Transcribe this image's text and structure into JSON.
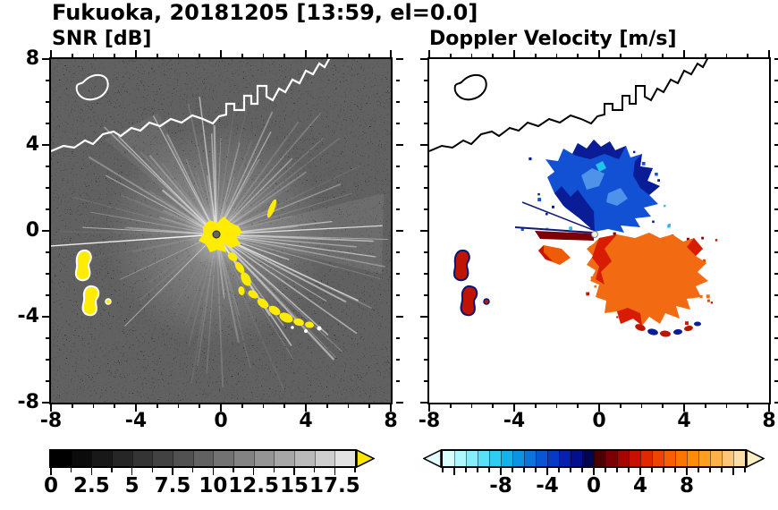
{
  "header": {
    "title": "Fukuoka, 20181205 [13:59, el=0.0]"
  },
  "panels": {
    "snr": {
      "label": "SNR [dB]",
      "xticks": [
        "-8",
        "-4",
        "0",
        "4",
        "8"
      ],
      "yticks": [
        "8",
        "4",
        "0",
        "-4",
        "-8"
      ]
    },
    "doppler": {
      "label": "Doppler Velocity [m/s]",
      "xticks": [
        "-8",
        "-4",
        "0",
        "4",
        "8"
      ]
    }
  },
  "colorbars": {
    "snr": {
      "range": [
        0,
        18.75
      ],
      "minor_step": 1.25,
      "major_tick_values": [
        0,
        2.5,
        5,
        7.5,
        10,
        12.5,
        15,
        17.5
      ],
      "label_values": [
        0,
        2.5,
        5,
        7.5,
        10,
        12.5,
        15,
        17.5
      ],
      "tick_labels": [
        "0",
        "2.5",
        "5",
        "7.5",
        "10",
        "12.5",
        "15",
        "17.5"
      ],
      "segment_colors": [
        "#000000",
        "#0b0b0b",
        "#181818",
        "#262626",
        "#343434",
        "#424242",
        "#515151",
        "#616161",
        "#727272",
        "#838383",
        "#959595",
        "#a7a7a7",
        "#bababa",
        "#cecece",
        "#e2e2e2"
      ],
      "over_arrow_color": "#ffe600",
      "frame_color": "#000000"
    },
    "doppler": {
      "range": [
        -13,
        13
      ],
      "minor_step": 1,
      "major_tick_values": [
        -12,
        -8,
        -4,
        0,
        4,
        8,
        12
      ],
      "label_values": [
        -8,
        -4,
        0,
        4,
        8
      ],
      "tick_labels": [
        "-8",
        "-4",
        "0",
        "4",
        "8"
      ],
      "segment_colors": [
        "#d8feff",
        "#b0f8ff",
        "#84f0fc",
        "#57e2f8",
        "#30cdf2",
        "#14b2ea",
        "#0e93e2",
        "#0b74da",
        "#0956d2",
        "#0739c4",
        "#0522ae",
        "#03108e",
        "#020650",
        "#4a0002",
        "#7c0002",
        "#a50400",
        "#c81000",
        "#e22800",
        "#ef4400",
        "#f75f00",
        "#fb7600",
        "#fd8c07",
        "#fe9f21",
        "#feb248",
        "#ffc677",
        "#ffdda8"
      ],
      "under_arrow_color": "#e2fdff",
      "over_arrow_color": "#ffeec6",
      "frame_color": "#000000"
    }
  },
  "chart_data": [
    {
      "type": "heatmap",
      "title": "SNR [dB]",
      "xlabel": "",
      "ylabel": "",
      "xlim": [
        -8,
        8
      ],
      "ylim": [
        -8,
        8
      ],
      "xticks": [
        -8,
        -4,
        0,
        4,
        8
      ],
      "yticks": [
        -8,
        -4,
        0,
        4,
        8
      ],
      "minor_tick_interval": 1,
      "grid": false,
      "colorbar": {
        "orientation": "horizontal",
        "range": [
          0,
          18.75
        ],
        "tick_values": [
          0,
          2.5,
          5,
          7.5,
          10,
          12.5,
          15,
          17.5
        ],
        "colormap": "black-to-white grayscale",
        "over_range_arrow_color": "#ffe600"
      },
      "features": [
        "radar site at origin (0,0), marked with a dark gray dot",
        "speckled low-SNR noise over a black background covering the whole 16x16 domain",
        "bright radial beams of enhanced SNR radiate from the origin in most azimuths; fewest and dimmest beams toward the southwest",
        "one long thin bright beam reaches the western edge just above y=0",
        "saturated high-SNR echo (yellow, above 17.5 dB) at the origin, continuing as an arc of yellow blobs from about (0.5,-1) to (3,-4.5)",
        "isolated yellow echoes with white fringes near (-6.5,-1.5) and (-6,-3.5)",
        "small yellow streak northeast of the radar near (2.5,1.5)",
        "white coastline crossing the north of the domain from about (-8,3.5) with harbor-like rectangular jags near (1 to 3, 5.5 to 7), exiting the top edge near x=5.5, plus an island outline near (-6.5,7)"
      ]
    },
    {
      "type": "heatmap",
      "title": "Doppler Velocity [m/s]",
      "xlabel": "",
      "ylabel": "",
      "xlim": [
        -8,
        8
      ],
      "ylim": [
        -8,
        8
      ],
      "xticks": [
        -8,
        -4,
        0,
        4,
        8
      ],
      "yticks": [
        -8,
        -4,
        0,
        4,
        8
      ],
      "minor_tick_interval": 1,
      "grid": false,
      "colorbar": {
        "orientation": "horizontal",
        "range": [
          -13,
          13
        ],
        "tick_values": [
          -8,
          -4,
          0,
          4,
          8
        ],
        "colormap": "diverging: pale cyan - blue - dark navy at 0- dark red - orange - pale yellow",
        "under_range_arrow_color": "#e2fdff",
        "over_range_arrow_color": "#ffeec6"
      },
      "features": [
        "radar site at origin (0,0), marked with a small white dot",
        "fan of negative velocities (blue, about -2 to -9 m/s) north of the radar out to about 4.5 km, darkest navy along its western and northern edges, speckled boundary",
        "fan of positive velocities (orange/red, about +2 to +8 m/s) south and southeast of the radar out to about 5 km",
        "narrow dark-red bar with a thin navy line extending west of the radar near y=0",
        "thin navy ray extending west-northwest from the radar",
        "scattered mixed dark-red/navy echoes near (-6.5,-1.5) and (-6,-3.5), matching the yellow SNR echoes",
        "chain of small red and navy echoes along the southeast edge of the positive fan near (2 to 5, -4 to -5)",
        "black coastline identical to the SNR panel; background is white where no echo is detected"
      ]
    }
  ]
}
